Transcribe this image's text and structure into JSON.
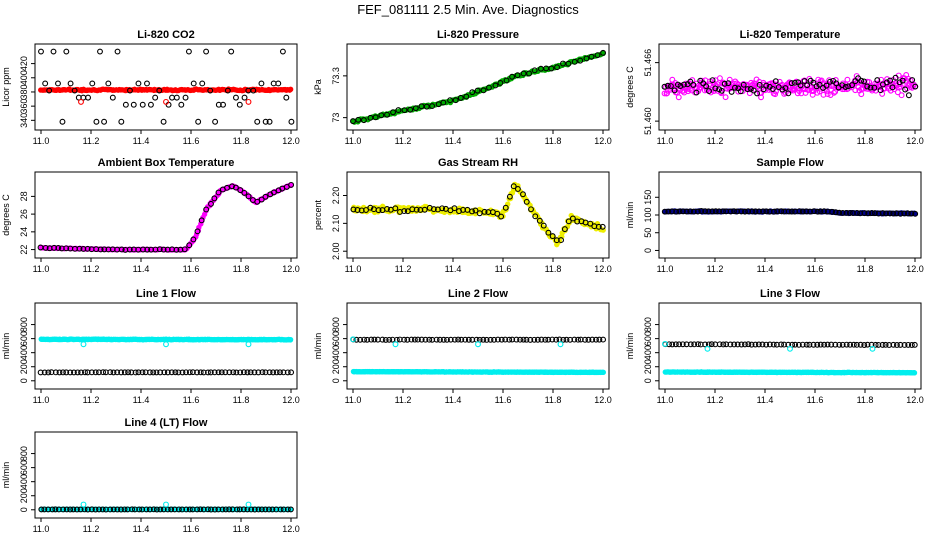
{
  "title": "FEF_081111  2.5 Min. Ave. Diagnostics",
  "chart_data": [
    {
      "type": "scatter",
      "title": "Li-820 CO2",
      "ylabel": "Licor ppm",
      "xlim": [
        11.0,
        12.0
      ],
      "ylim": [
        332,
        442
      ],
      "xticks": [
        "11.0",
        "11.2",
        "11.4",
        "11.6",
        "11.8",
        "12.0"
      ],
      "yticks": [
        340,
        360,
        380,
        400,
        420
      ],
      "series": [
        {
          "color": "#ff0000",
          "fill": "solid",
          "mode": "flat",
          "value": 383,
          "noise": 1.5,
          "n": 170
        },
        {
          "color": "#000000",
          "fill": "open",
          "mode": "levels",
          "levels": [
            338,
            362,
            372,
            382,
            392,
            437
          ],
          "n": 60
        }
      ],
      "outliers": [
        {
          "x": 11.16,
          "y": 366,
          "color": "#ff0000"
        },
        {
          "x": 11.5,
          "y": 366,
          "color": "#ff0000"
        },
        {
          "x": 11.83,
          "y": 366,
          "color": "#ff0000"
        }
      ]
    },
    {
      "type": "scatter",
      "title": "Li-820 Pressure",
      "ylabel": "kPa",
      "xlim": [
        11.0,
        12.0
      ],
      "ylim": [
        72.94,
        73.5
      ],
      "xticks": [
        "11.0",
        "11.2",
        "11.4",
        "11.6",
        "11.8",
        "12.0"
      ],
      "yticks": [
        73.0,
        73.3
      ],
      "series": [
        {
          "color": "#00aa00",
          "fill": "solid",
          "mode": "trend",
          "points": [
            [
              11.0,
              72.97
            ],
            [
              11.2,
              73.05
            ],
            [
              11.4,
              73.12
            ],
            [
              11.55,
              73.22
            ],
            [
              11.65,
              73.3
            ],
            [
              11.8,
              73.36
            ],
            [
              12.0,
              73.46
            ]
          ],
          "noise": 0.012,
          "n": 170
        },
        {
          "color": "#000000",
          "fill": "open",
          "mode": "trend",
          "points": [
            [
              11.0,
              72.97
            ],
            [
              11.2,
              73.05
            ],
            [
              11.4,
              73.12
            ],
            [
              11.55,
              73.22
            ],
            [
              11.65,
              73.3
            ],
            [
              11.8,
              73.36
            ],
            [
              12.0,
              73.46
            ]
          ],
          "noise": 0.018,
          "n": 45
        }
      ]
    },
    {
      "type": "scatter",
      "title": "Li-820 Temperature",
      "ylabel": "degrees C",
      "xlim": [
        11.0,
        12.0
      ],
      "ylim": [
        51.4595,
        51.4675
      ],
      "xticks": [
        "11.0",
        "11.2",
        "11.4",
        "11.6",
        "11.8",
        "12.0"
      ],
      "yticks": [
        51.46,
        51.466
      ],
      "ytickFormat": 3,
      "series": [
        {
          "color": "#ff00ff",
          "fill": "open",
          "mode": "trend",
          "points": [
            [
              11.0,
              51.4635
            ],
            [
              11.7,
              51.4635
            ],
            [
              12.0,
              51.4638
            ]
          ],
          "noise": 0.0012,
          "n": 320
        },
        {
          "color": "#000000",
          "fill": "open",
          "mode": "trend",
          "points": [
            [
              11.0,
              51.4635
            ],
            [
              12.0,
              51.4638
            ]
          ],
          "noise": 0.0012,
          "n": 80
        }
      ]
    },
    {
      "type": "scatter",
      "title": "Ambient Box Temperature",
      "ylabel": "degrees C",
      "xlim": [
        11.0,
        12.0
      ],
      "ylim": [
        21.5,
        30.3
      ],
      "xticks": [
        "11.0",
        "11.2",
        "11.4",
        "11.6",
        "11.8",
        "12.0"
      ],
      "yticks": [
        22,
        24,
        26,
        28
      ],
      "series": [
        {
          "color": "#ff00ff",
          "fill": "solid",
          "mode": "trend",
          "points": [
            [
              11.0,
              22.2
            ],
            [
              11.3,
              22.0
            ],
            [
              11.58,
              22.0
            ],
            [
              11.62,
              23.5
            ],
            [
              11.66,
              26.5
            ],
            [
              11.72,
              28.7
            ],
            [
              11.77,
              29.2
            ],
            [
              11.82,
              28.3
            ],
            [
              11.86,
              27.3
            ],
            [
              11.92,
              28.3
            ],
            [
              12.0,
              29.3
            ]
          ],
          "noise": 0.06,
          "n": 200
        },
        {
          "color": "#000000",
          "fill": "open",
          "mode": "trend",
          "points": [
            [
              11.0,
              22.2
            ],
            [
              11.3,
              22.0
            ],
            [
              11.58,
              22.0
            ],
            [
              11.62,
              23.5
            ],
            [
              11.66,
              26.5
            ],
            [
              11.72,
              28.7
            ],
            [
              11.77,
              29.2
            ],
            [
              11.82,
              28.3
            ],
            [
              11.86,
              27.3
            ],
            [
              11.92,
              28.3
            ],
            [
              12.0,
              29.3
            ]
          ],
          "noise": 0.06,
          "n": 60
        }
      ]
    },
    {
      "type": "scatter",
      "title": "Gas Stream RH",
      "ylabel": "percent",
      "xlim": [
        11.0,
        12.0
      ],
      "ylim": [
        1.99,
        2.27
      ],
      "xticks": [
        "11.0",
        "11.2",
        "11.4",
        "11.6",
        "11.8",
        "12.0"
      ],
      "yticks": [
        2.0,
        2.1,
        2.2
      ],
      "ytickFormat": 2,
      "series": [
        {
          "color": "#eeee00",
          "fill": "solid",
          "mode": "trend",
          "points": [
            [
              11.0,
              2.15
            ],
            [
              11.3,
              2.15
            ],
            [
              11.55,
              2.14
            ],
            [
              11.6,
              2.13
            ],
            [
              11.65,
              2.24
            ],
            [
              11.7,
              2.17
            ],
            [
              11.77,
              2.08
            ],
            [
              11.82,
              2.03
            ],
            [
              11.87,
              2.12
            ],
            [
              12.0,
              2.08
            ]
          ],
          "noise": 0.015,
          "n": 230
        },
        {
          "color": "#000000",
          "fill": "open",
          "mode": "trend",
          "points": [
            [
              11.0,
              2.15
            ],
            [
              11.3,
              2.15
            ],
            [
              11.55,
              2.14
            ],
            [
              11.6,
              2.13
            ],
            [
              11.65,
              2.24
            ],
            [
              11.7,
              2.17
            ],
            [
              11.77,
              2.08
            ],
            [
              11.82,
              2.03
            ],
            [
              11.87,
              2.12
            ],
            [
              12.0,
              2.08
            ]
          ],
          "noise": 0.012,
          "n": 60
        }
      ]
    },
    {
      "type": "scatter",
      "title": "Sample Flow",
      "ylabel": "ml/min",
      "xlim": [
        11.0,
        12.0
      ],
      "ylim": [
        -10,
        210
      ],
      "xticks": [
        "11.0",
        "11.2",
        "11.4",
        "11.6",
        "11.8",
        "12.0"
      ],
      "yticks": [
        0,
        50,
        100,
        150
      ],
      "series": [
        {
          "color": "#000088",
          "fill": "solid",
          "mode": "trend",
          "points": [
            [
              11.0,
              110
            ],
            [
              11.65,
              110
            ],
            [
              11.7,
              106
            ],
            [
              12.0,
              104
            ]
          ],
          "noise": 2,
          "n": 230
        },
        {
          "color": "#000000",
          "fill": "open",
          "mode": "trend",
          "points": [
            [
              11.0,
              110
            ],
            [
              11.65,
              110
            ],
            [
              11.7,
              106
            ],
            [
              12.0,
              104
            ]
          ],
          "noise": 1.5,
          "n": 70
        }
      ]
    },
    {
      "type": "scatter",
      "title": "Line 1 Flow",
      "ylabel": "ml/min",
      "xlim": [
        11.0,
        12.0
      ],
      "ylim": [
        -60,
        1050
      ],
      "xticks": [
        "11.0",
        "11.2",
        "11.4",
        "11.6",
        "11.8",
        "12.0"
      ],
      "yticks": [
        0,
        200,
        400,
        600,
        800
      ],
      "series": [
        {
          "color": "#00eeee",
          "fill": "solid",
          "mode": "trend",
          "points": [
            [
              11.0,
              590
            ],
            [
              12.0,
              585
            ]
          ],
          "noise": 6,
          "n": 230
        },
        {
          "color": "#000000",
          "fill": "open",
          "mode": "trend",
          "points": [
            [
              11.0,
              120
            ],
            [
              12.0,
              120
            ]
          ],
          "noise": 3,
          "n": 70
        }
      ],
      "outliers": [
        {
          "x": 11.17,
          "y": 520,
          "color": "#00eeee"
        },
        {
          "x": 11.5,
          "y": 520,
          "color": "#00eeee"
        },
        {
          "x": 11.83,
          "y": 520,
          "color": "#00eeee"
        }
      ]
    },
    {
      "type": "scatter",
      "title": "Line 2 Flow",
      "ylabel": "ml/min",
      "xlim": [
        11.0,
        12.0
      ],
      "ylim": [
        -60,
        1050
      ],
      "xticks": [
        "11.0",
        "11.2",
        "11.4",
        "11.6",
        "11.8",
        "12.0"
      ],
      "yticks": [
        0,
        200,
        400,
        600,
        800
      ],
      "series": [
        {
          "color": "#00eeee",
          "fill": "solid",
          "mode": "trend",
          "points": [
            [
              11.0,
              130
            ],
            [
              12.0,
              120
            ]
          ],
          "noise": 4,
          "n": 230
        },
        {
          "color": "#000000",
          "fill": "open",
          "mode": "trend",
          "points": [
            [
              11.0,
              585
            ],
            [
              12.0,
              585
            ]
          ],
          "noise": 4,
          "n": 70
        }
      ],
      "outliers": [
        {
          "x": 11.17,
          "y": 520,
          "color": "#00eeee"
        },
        {
          "x": 11.5,
          "y": 520,
          "color": "#00eeee"
        },
        {
          "x": 11.83,
          "y": 520,
          "color": "#00eeee"
        },
        {
          "x": 11.0,
          "y": 590,
          "color": "#00eeee"
        }
      ]
    },
    {
      "type": "scatter",
      "title": "Line 3 Flow",
      "ylabel": "ml/min",
      "xlim": [
        11.0,
        12.0
      ],
      "ylim": [
        -60,
        1050
      ],
      "xticks": [
        "11.0",
        "11.2",
        "11.4",
        "11.6",
        "11.8",
        "12.0"
      ],
      "yticks": [
        0,
        200,
        400,
        600,
        800
      ],
      "series": [
        {
          "color": "#00eeee",
          "fill": "solid",
          "mode": "trend",
          "points": [
            [
              11.0,
              125
            ],
            [
              12.0,
              115
            ]
          ],
          "noise": 4,
          "n": 230
        },
        {
          "color": "#000000",
          "fill": "open",
          "mode": "trend",
          "points": [
            [
              11.0,
              520
            ],
            [
              12.0,
              510
            ]
          ],
          "noise": 4,
          "n": 70
        }
      ],
      "outliers": [
        {
          "x": 11.17,
          "y": 455,
          "color": "#00eeee"
        },
        {
          "x": 11.5,
          "y": 455,
          "color": "#00eeee"
        },
        {
          "x": 11.83,
          "y": 455,
          "color": "#00eeee"
        },
        {
          "x": 11.0,
          "y": 525,
          "color": "#00eeee"
        }
      ]
    },
    {
      "type": "scatter",
      "title": "Line 4 (LT) Flow",
      "ylabel": "ml/min",
      "xlim": [
        11.0,
        12.0
      ],
      "ylim": [
        -60,
        1050
      ],
      "xticks": [
        "11.0",
        "11.2",
        "11.4",
        "11.6",
        "11.8",
        "12.0"
      ],
      "yticks": [
        0,
        200,
        400,
        600,
        800
      ],
      "series": [
        {
          "color": "#00eeee",
          "fill": "solid",
          "mode": "trend",
          "points": [
            [
              11.0,
              5
            ],
            [
              12.0,
              5
            ]
          ],
          "noise": 2,
          "n": 230
        },
        {
          "color": "#000000",
          "fill": "open",
          "mode": "trend",
          "points": [
            [
              11.0,
              5
            ],
            [
              12.0,
              5
            ]
          ],
          "noise": 2,
          "n": 70
        }
      ],
      "outliers": [
        {
          "x": 11.17,
          "y": 75,
          "color": "#00eeee"
        },
        {
          "x": 11.5,
          "y": 75,
          "color": "#00eeee"
        },
        {
          "x": 11.83,
          "y": 75,
          "color": "#00eeee"
        }
      ]
    }
  ]
}
